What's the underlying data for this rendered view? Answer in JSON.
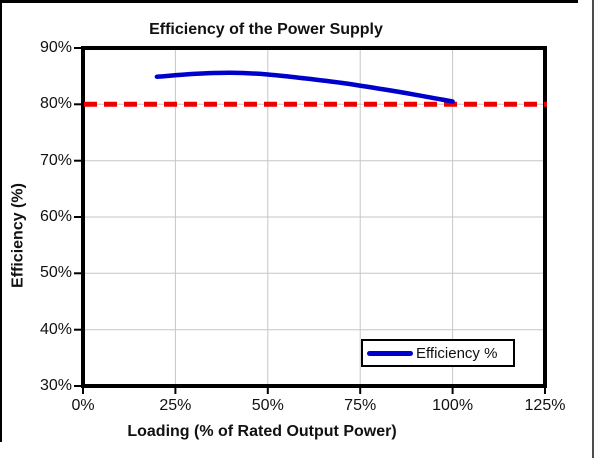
{
  "chart_data": {
    "type": "line",
    "title": "Efficiency of the Power Supply",
    "xlabel": "Loading (% of Rated Output Power)",
    "ylabel": "Efficiency (%)",
    "xlim": [
      0,
      125
    ],
    "ylim": [
      30,
      90
    ],
    "x_ticks": [
      0,
      25,
      50,
      75,
      100,
      125
    ],
    "x_tick_labels": [
      "0%",
      "25%",
      "50%",
      "75%",
      "100%",
      "125%"
    ],
    "y_ticks": [
      30,
      40,
      50,
      60,
      70,
      80,
      90
    ],
    "y_tick_labels": [
      "30%",
      "40%",
      "50%",
      "60%",
      "70%",
      "80%",
      "90%"
    ],
    "grid": true,
    "legend": {
      "label": "Efficiency %",
      "position": "bottom-right"
    },
    "series": [
      {
        "name": "Efficiency %",
        "color": "#0000cc",
        "style": "solid",
        "smooth": true,
        "x": [
          20,
          30,
          40,
          50,
          60,
          70,
          80,
          90,
          100
        ],
        "y": [
          84.9,
          85.4,
          85.6,
          85.3,
          84.6,
          83.8,
          82.8,
          81.7,
          80.5
        ]
      }
    ],
    "reference_line": {
      "y": 80,
      "color": "#ee0000",
      "style": "dashed"
    }
  },
  "colors": {
    "gridline": "#c6c6c6",
    "axis_border": "#000000",
    "tick": "#000000",
    "frame": "#000000"
  }
}
